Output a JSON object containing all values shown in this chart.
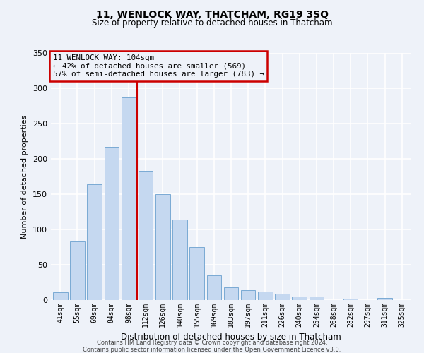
{
  "title": "11, WENLOCK WAY, THATCHAM, RG19 3SQ",
  "subtitle": "Size of property relative to detached houses in Thatcham",
  "xlabel": "Distribution of detached houses by size in Thatcham",
  "ylabel": "Number of detached properties",
  "bar_labels": [
    "41sqm",
    "55sqm",
    "69sqm",
    "84sqm",
    "98sqm",
    "112sqm",
    "126sqm",
    "140sqm",
    "155sqm",
    "169sqm",
    "183sqm",
    "197sqm",
    "211sqm",
    "226sqm",
    "240sqm",
    "254sqm",
    "268sqm",
    "282sqm",
    "297sqm",
    "311sqm",
    "325sqm"
  ],
  "bar_values": [
    11,
    83,
    164,
    217,
    287,
    183,
    150,
    114,
    75,
    35,
    18,
    14,
    12,
    9,
    5,
    5,
    0,
    2,
    0,
    3,
    0
  ],
  "bar_color": "#c5d8f0",
  "bar_edgecolor": "#7aaad4",
  "vline_x": 4.5,
  "vline_color": "#cc0000",
  "annotation_title": "11 WENLOCK WAY: 104sqm",
  "annotation_line1": "← 42% of detached houses are smaller (569)",
  "annotation_line2": "57% of semi-detached houses are larger (783) →",
  "annotation_box_edgecolor": "#cc0000",
  "ylim": [
    0,
    350
  ],
  "yticks": [
    0,
    50,
    100,
    150,
    200,
    250,
    300,
    350
  ],
  "footer1": "Contains HM Land Registry data © Crown copyright and database right 2024.",
  "footer2": "Contains public sector information licensed under the Open Government Licence v3.0.",
  "background_color": "#eef2f9",
  "grid_color": "#ffffff"
}
